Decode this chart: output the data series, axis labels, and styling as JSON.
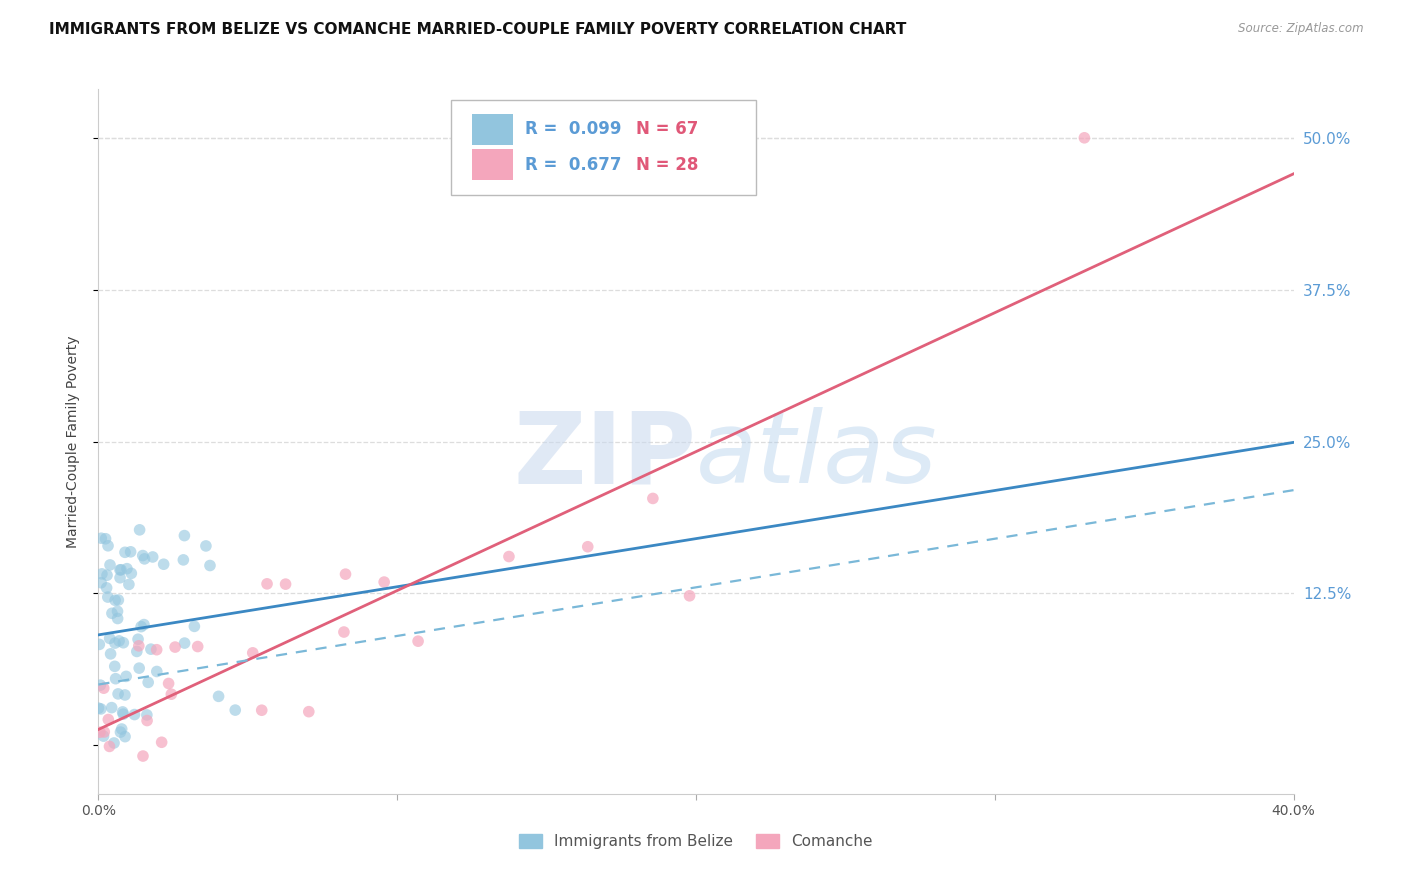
{
  "title": "IMMIGRANTS FROM BELIZE VS COMANCHE MARRIED-COUPLE FAMILY POVERTY CORRELATION CHART",
  "source_text": "Source: ZipAtlas.com",
  "ylabel": "Married-Couple Family Poverty",
  "xlim": [
    0.0,
    0.4
  ],
  "ylim": [
    -0.04,
    0.54
  ],
  "series1_name": "Immigrants from Belize",
  "series1_R": 0.099,
  "series1_N": 67,
  "series1_color": "#92c5de",
  "series2_name": "Comanche",
  "series2_R": 0.677,
  "series2_N": 28,
  "series2_color": "#f4a6bc",
  "watermark_zip": "ZIP",
  "watermark_atlas": "atlas",
  "background_color": "#ffffff",
  "grid_color": "#dddddd",
  "title_fontsize": 11,
  "axis_fontsize": 10,
  "tick_fontsize": 10,
  "right_tick_color": "#5b9bd5",
  "legend_R_color": "#5b9bd5",
  "legend_N_color": "#e05878"
}
